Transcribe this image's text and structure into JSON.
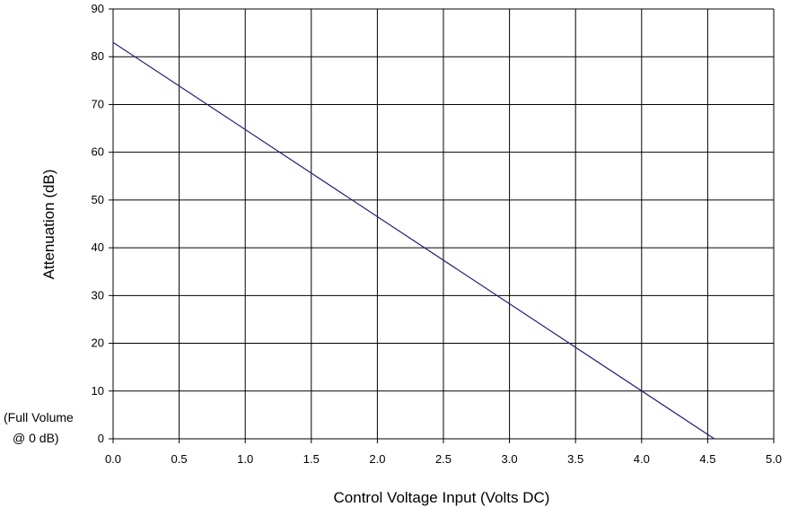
{
  "chart_data": {
    "type": "line",
    "title": "",
    "xlabel": "Control Voltage Input (Volts DC)",
    "ylabel": "Attenuation (dB)",
    "xlim": [
      0,
      5
    ],
    "ylim": [
      0,
      90
    ],
    "x_ticks": [
      "0.0",
      "0.5",
      "1.0",
      "1.5",
      "2.0",
      "2.5",
      "3.0",
      "3.5",
      "4.0",
      "4.5",
      "5.0"
    ],
    "y_ticks": [
      "0",
      "10",
      "20",
      "30",
      "40",
      "50",
      "60",
      "70",
      "80",
      "90"
    ],
    "grid": true,
    "series": [
      {
        "x": [
          0.0,
          4.55
        ],
        "y": [
          83,
          0
        ],
        "color": "#1f1f7a"
      }
    ],
    "annotation": {
      "line1": "(Full Volume",
      "line2": "@ 0 dB)"
    }
  }
}
